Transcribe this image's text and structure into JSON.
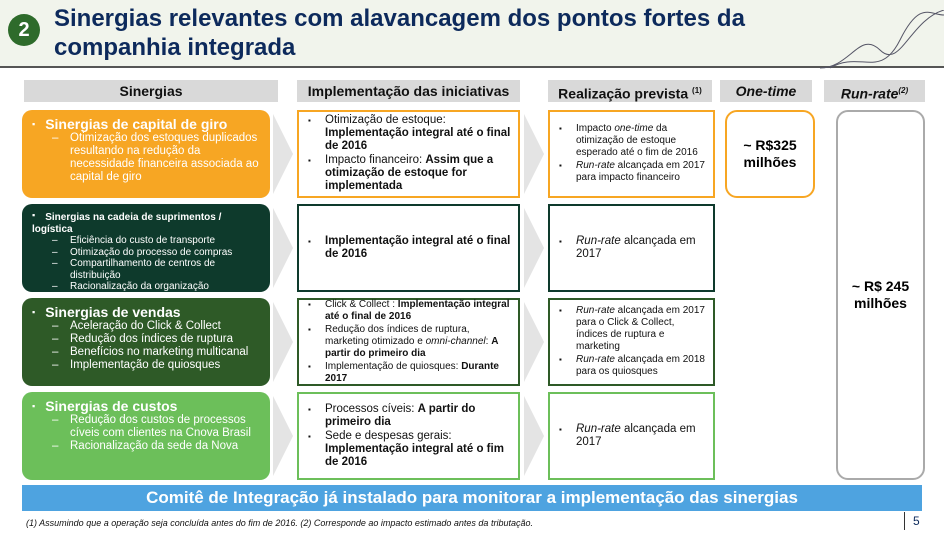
{
  "header": {
    "section_number": "2",
    "title": "Sinergias relevantes com alavancagem dos pontos fortes da companhia integrada"
  },
  "columns": {
    "sinergias": "Sinergias",
    "implementacao": "Implementação das iniciativas",
    "realizacao": "Realização prevista",
    "realizacao_note": "(1)",
    "one_time": "One-time",
    "run_rate": "Run-rate",
    "run_rate_note": "(2)"
  },
  "rows": [
    {
      "title": "Sinergias de capital de giro",
      "color": "#f7a623",
      "items": [
        "Otimização dos estoques duplicados resultando na redução da necessidade financeira associada ao capital de giro"
      ],
      "impl": [
        [
          "Otimização de estoque: ",
          "Implementação integral até o final de 2016"
        ],
        [
          "Impacto financeiro: ",
          "Assim que a otimização de estoque for implementada"
        ]
      ],
      "real": [
        [
          "Impacto ",
          "one-time",
          " da otimização de estoque esperado até o fim de 2016"
        ],
        [
          "",
          "Run-rate",
          " alcançada em 2017 para impacto financeiro"
        ]
      ]
    },
    {
      "title": "Sinergias na cadeia de suprimentos / logística",
      "color": "#0e3a2c",
      "items": [
        "Eficiência do custo de transporte",
        "Otimização do processo de compras",
        "Compartilhamento de centros de distribuição",
        "Racionalização da organização"
      ],
      "impl": [
        [
          "",
          "Implementação integral até o final de 2016"
        ]
      ],
      "real": [
        [
          "",
          "Run-rate",
          " alcançada em 2017"
        ]
      ]
    },
    {
      "title": "Sinergias de vendas",
      "color": "#2e5a27",
      "items": [
        "Aceleração do Click & Collect",
        "Redução dos índices de ruptura",
        "Benefícios no marketing multicanal",
        "Implementação de quiosques"
      ],
      "impl": [
        [
          "Click & Collect : ",
          "Implementação integral até o final de 2016"
        ],
        [
          "Redução dos índices de ruptura, marketing otimizado e ",
          "omni-channel",
          ": ",
          "A partir do primeiro dia"
        ],
        [
          "Implementação de quiosques: ",
          "Durante 2017"
        ]
      ],
      "real": [
        [
          "",
          "Run-rate",
          " alcançada em 2017 para o Click & Collect, índices de ruptura e marketing"
        ],
        [
          "",
          "Run-rate",
          " alcançada em 2018 para os quiosques"
        ]
      ]
    },
    {
      "title": "Sinergias de custos",
      "color": "#6cbf5a",
      "items": [
        "Redução dos custos de processos cíveis com clientes na Cnova Brasil",
        "Racionalização da sede da Nova"
      ],
      "impl": [
        [
          "Processos cíveis: ",
          "A partir do primeiro dia"
        ],
        [
          "Sede e despesas gerais: ",
          "Implementação integral até o fim de 2016"
        ]
      ],
      "real": [
        [
          "",
          "Run-rate",
          " alcançada em 2017"
        ]
      ]
    }
  ],
  "one_time_value": "~ R$325 milhões",
  "run_rate_value": "~ R$ 245 milhões",
  "banner": "Comitê de Integração já instalado para monitorar a implementação das sinergias",
  "footnote": "(1) Assumindo que a operação seja concluída antes do fim de 2016. (2) Corresponde ao impacto estimado antes da tributação.",
  "page_number": "5"
}
